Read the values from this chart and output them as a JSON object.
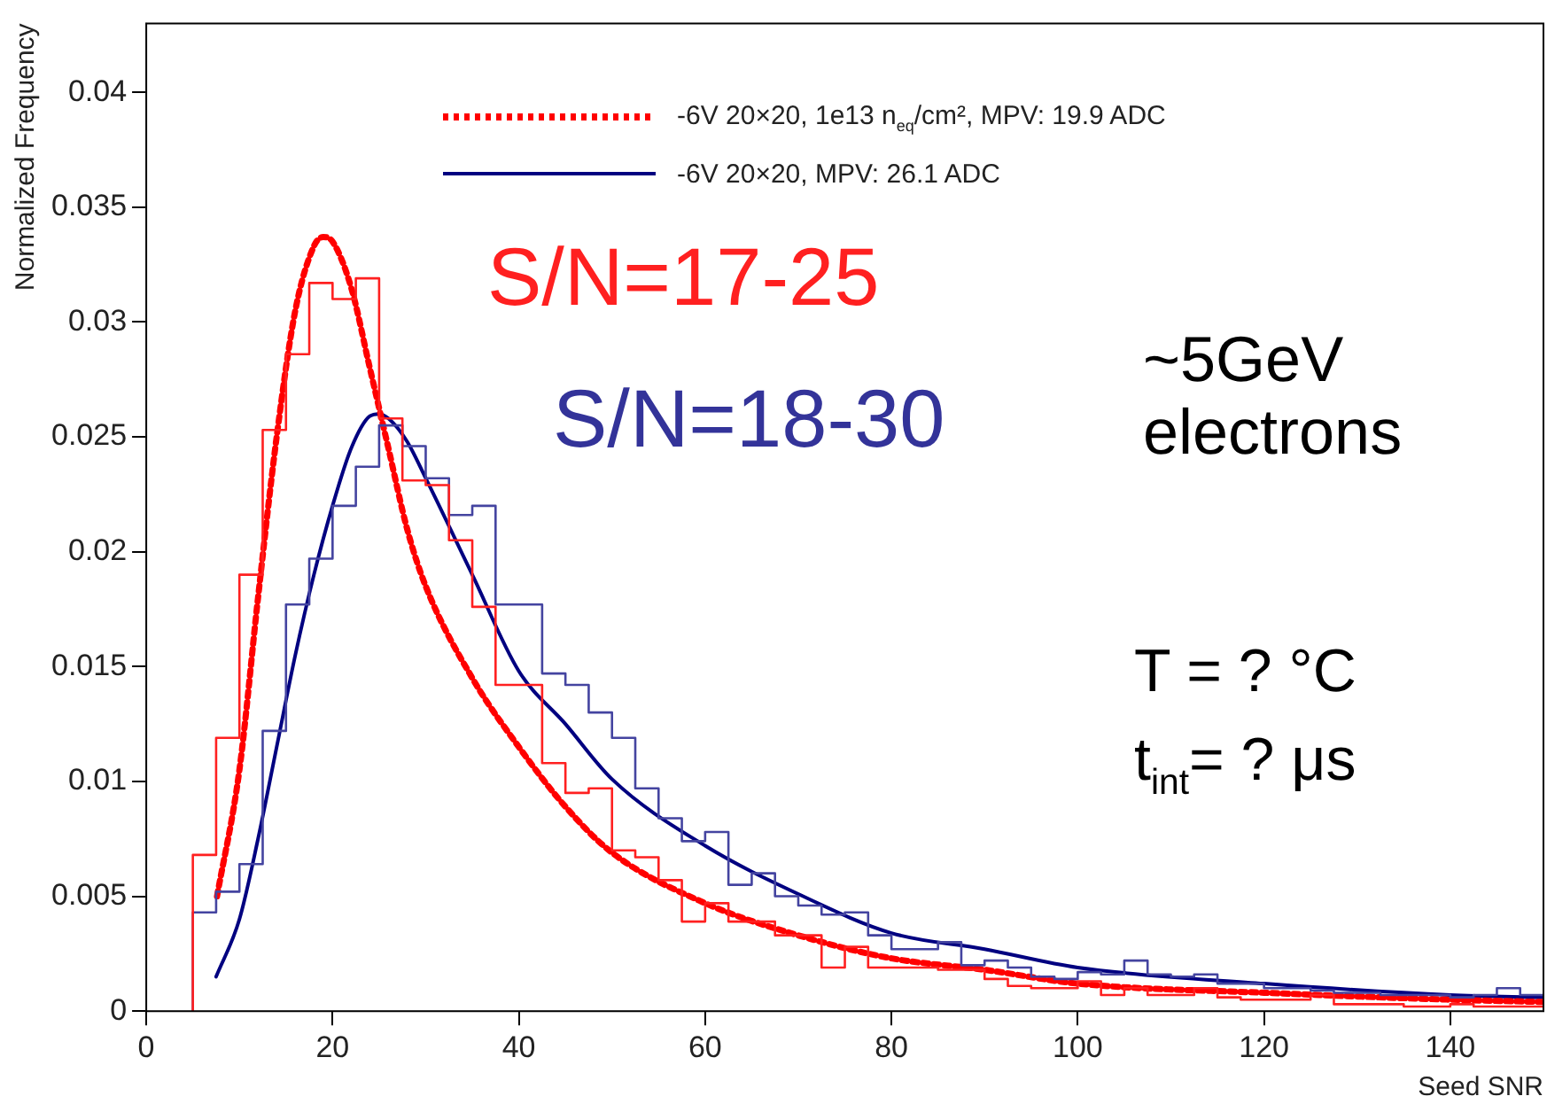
{
  "chart_data": {
    "type": "histogram",
    "xlabel": "Seed SNR",
    "ylabel": "Normalized Frequency",
    "bins": [
      5,
      7.5,
      10,
      12.5,
      15,
      17.5,
      20,
      22.5,
      25,
      27.5,
      30,
      32.5,
      35,
      37.5,
      40,
      42.5,
      45,
      47.5,
      50,
      52.5,
      55,
      57.5,
      60,
      62.5,
      65,
      67.5,
      70,
      72.5,
      75,
      77.5,
      80,
      82.5,
      85,
      87.5,
      90,
      92.5,
      95,
      97.5,
      100,
      102.5,
      105,
      107.5,
      110,
      112.5,
      115,
      117.5,
      120,
      122.5,
      125,
      127.5,
      130,
      132.5,
      135,
      137.5,
      140,
      142.5,
      145,
      147.5,
      150
    ],
    "series": [
      {
        "type": "histogram",
        "color": "#ff2020",
        "values": [
          0.0068,
          0.0119,
          0.019,
          0.0253,
          0.0286,
          0.0317,
          0.031,
          0.0319,
          0.0258,
          0.0231,
          0.0229,
          0.0205,
          0.0176,
          0.0142,
          0.0142,
          0.0108,
          0.0095,
          0.0097,
          0.007,
          0.0067,
          0.0057,
          0.0039,
          0.0047,
          0.0039,
          0.0039,
          0.0033,
          0.0033,
          0.0019,
          0.0028,
          0.0019,
          0.0019,
          0.0019,
          0.0018,
          0.0018,
          0.0014,
          0.0011,
          0.001,
          0.001,
          0.0013,
          0.0007,
          0.001,
          0.0007,
          0.0007,
          0.001,
          0.0006,
          0.0005,
          0.0005,
          0.0005,
          0.0007,
          0.0003,
          0.0003,
          0.0003,
          0.0002,
          0.0002,
          0.0003,
          0.0002,
          0.0002,
          0.0002
        ]
      },
      {
        "type": "histogram",
        "color": "#4444a0",
        "values": [
          0.0043,
          0.0052,
          0.0064,
          0.0122,
          0.0177,
          0.0197,
          0.022,
          0.0237,
          0.0255,
          0.0246,
          0.0232,
          0.0216,
          0.022,
          0.0177,
          0.0177,
          0.0147,
          0.0142,
          0.013,
          0.0119,
          0.0097,
          0.0084,
          0.0074,
          0.0078,
          0.0055,
          0.006,
          0.005,
          0.0046,
          0.0042,
          0.0043,
          0.0033,
          0.0027,
          0.0027,
          0.003,
          0.002,
          0.0022,
          0.0019,
          0.0015,
          0.0014,
          0.0017,
          0.0016,
          0.0022,
          0.0016,
          0.0015,
          0.0016,
          0.0012,
          0.0012,
          0.001,
          0.001,
          0.0009,
          0.0008,
          0.0008,
          0.0007,
          0.0007,
          0.0007,
          0.0006,
          0.0007,
          0.001,
          0.0007
        ]
      },
      {
        "type": "line",
        "name": "-6V 20×20, 1e13 n$_{eq}$/cm², MPV: 19.9 ADC",
        "color": "#ff0000",
        "line_style": "dotted",
        "x": [
          7.6,
          10,
          12,
          14,
          16,
          18,
          19,
          20,
          22,
          24,
          26,
          28,
          30,
          35,
          40,
          45,
          50,
          60,
          70,
          80,
          90,
          100,
          120,
          140,
          150
        ],
        "values": [
          0.005,
          0.0105,
          0.018,
          0.025,
          0.0305,
          0.0333,
          0.0337,
          0.0335,
          0.0315,
          0.028,
          0.0245,
          0.021,
          0.0185,
          0.0145,
          0.0115,
          0.0089,
          0.0069,
          0.0047,
          0.0033,
          0.0023,
          0.0018,
          0.0012,
          0.0008,
          0.0005,
          0.0004
        ]
      },
      {
        "type": "line",
        "name": "-6V 20×20, MPV: 26.1 ADC",
        "color": "#000080",
        "line_style": "solid",
        "x": [
          7.5,
          10,
          12,
          14,
          16,
          18,
          20,
          22,
          24,
          25,
          26,
          28,
          30,
          35,
          40,
          45,
          50,
          60,
          70,
          80,
          90,
          100,
          120,
          140,
          150
        ],
        "values": [
          0.0015,
          0.004,
          0.0075,
          0.0115,
          0.0155,
          0.019,
          0.022,
          0.0245,
          0.0259,
          0.026,
          0.0258,
          0.0248,
          0.0232,
          0.019,
          0.0148,
          0.0125,
          0.0101,
          0.0072,
          0.0051,
          0.0034,
          0.0027,
          0.0019,
          0.0012,
          0.0007,
          0.0006
        ]
      }
    ],
    "xlim": [
      0,
      150
    ],
    "xticks": [
      0,
      20,
      40,
      60,
      80,
      100,
      120,
      140
    ],
    "ylim": [
      0,
      0.043
    ],
    "yticks": [
      0,
      0.005,
      0.01,
      0.015,
      0.02,
      0.025,
      0.03,
      0.035,
      0.04
    ],
    "grid": false,
    "legend": "top right",
    "marker": "none",
    "annotations": [
      "S/N=17-25",
      "S/N=18-30",
      "~5GeV\nelectrons",
      "T = ? °C",
      "t$_{int}$= ? μs"
    ]
  }
}
